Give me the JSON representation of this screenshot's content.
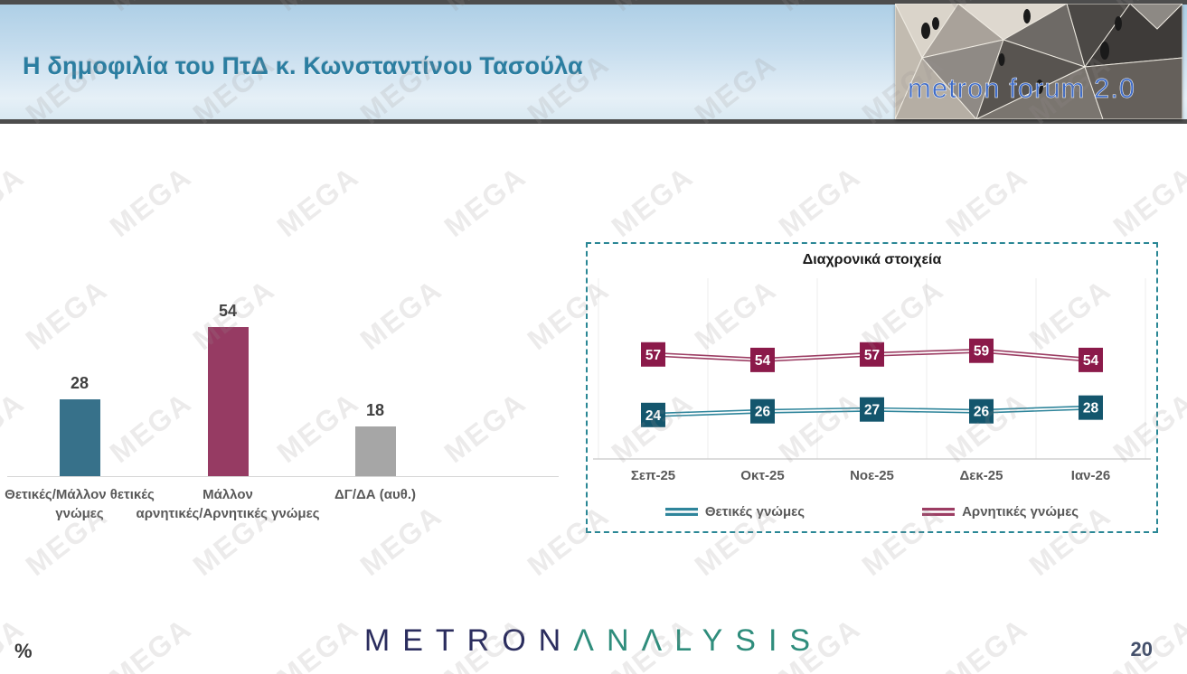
{
  "slide": {
    "title": "Η δημοφιλία του ΠτΔ κ. Κωνσταντίνου Τασούλα",
    "page_number": "20",
    "footer_unit": "%",
    "watermark_text": "MEGA"
  },
  "logo_banner": {
    "text": "metron forum 2.0"
  },
  "footer_logo": {
    "part1": "METRON",
    "part2": "ΛNΛLYSIS"
  },
  "colors": {
    "title_teal": "#2b7ea1",
    "panel_border": "#2a8795",
    "axis_label": "#595959",
    "positive": "#37718a",
    "negative": "#963b63",
    "neutral": "#a6a6a6"
  },
  "chart_data": [
    {
      "type": "bar",
      "title": "",
      "categories": [
        "Θετικές/Μάλλον θετικές γνώμες",
        "Μάλλον αρνητικές/Αρνητικές γνώμες",
        "ΔΓ/ΔΑ (αυθ.)"
      ],
      "category_lines": [
        [
          "Θετικές/Μάλλον θετικές",
          "γνώμες"
        ],
        [
          "Μάλλον",
          "αρνητικές/Αρνητικές γνώμες"
        ],
        [
          "ΔΓ/ΔΑ (αυθ.)"
        ]
      ],
      "values": [
        28,
        54,
        18
      ],
      "colors": [
        "#37718a",
        "#963b63",
        "#a6a6a6"
      ],
      "ylim": [
        0,
        100
      ],
      "data_labels": true,
      "grid": false
    },
    {
      "type": "line",
      "title": "Διαχρονικά στοιχεία",
      "x": [
        "Σεπ-25",
        "Οκτ-25",
        "Νοε-25",
        "Δεκ-25",
        "Ιαν-26"
      ],
      "series": [
        {
          "name": "Θετικές γνώμες",
          "values": [
            24,
            26,
            27,
            26,
            28
          ],
          "color": "#2f859b",
          "marker_color": "#14566d"
        },
        {
          "name": "Αρνητικές γνώμες",
          "values": [
            57,
            54,
            57,
            59,
            54
          ],
          "color": "#9c3d63",
          "marker_color": "#8b1a4a"
        }
      ],
      "ylim": [
        0,
        100
      ],
      "legend_position": "bottom",
      "grid": "vertical",
      "marker_labels": true
    }
  ]
}
